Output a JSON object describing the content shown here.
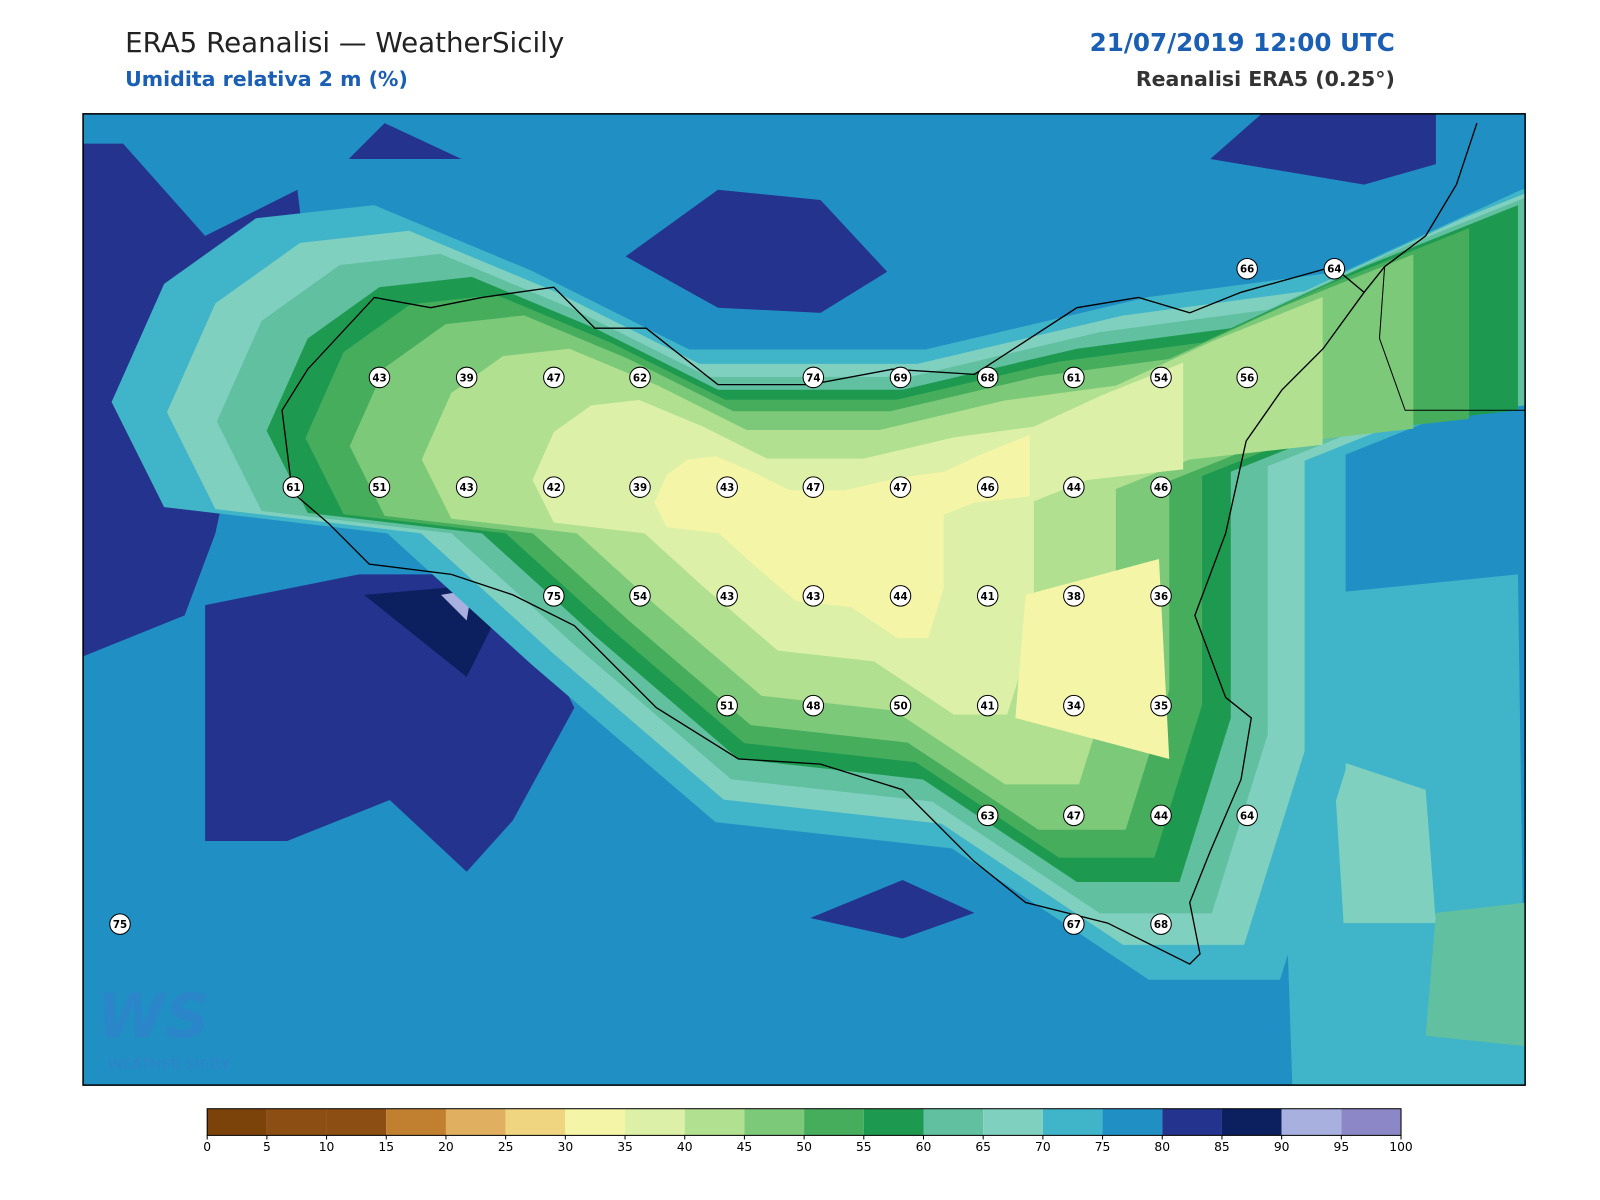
{
  "header": {
    "title": "ERA5 Reanalisi — WeatherSicily",
    "subtitle": "Umidita relativa 2 m (%)",
    "date": "21/07/2019 12:00 UTC",
    "source": "Reanalisi ERA5 (0.25°)"
  },
  "logo": {
    "text": "WS",
    "subtext": "WEATHER SICILY"
  },
  "stations": [
    66,
    64,
    43,
    39,
    47,
    62,
    74,
    69,
    68,
    61,
    54,
    56,
    61,
    51,
    43,
    42,
    39,
    43,
    47,
    47,
    46,
    44,
    46,
    75,
    54,
    43,
    43,
    44,
    41,
    38,
    36,
    51,
    48,
    50,
    41,
    34,
    35,
    63,
    47,
    44,
    64,
    75,
    67,
    68
  ],
  "colorbar": {
    "ticks": [
      0,
      5,
      10,
      15,
      20,
      25,
      30,
      35,
      40,
      45,
      50,
      55,
      60,
      65,
      70,
      75,
      80,
      85,
      90,
      95,
      100
    ],
    "colors": [
      "#7b430a",
      "#8c4e12",
      "#8c4e12",
      "#c08030",
      "#e0b060",
      "#f0d580",
      "#f5f5a8",
      "#dcf0a8",
      "#b0e090",
      "#7dc97a",
      "#45ad5c",
      "#1e9a50",
      "#60c0a0",
      "#80d0c0",
      "#40b4c8",
      "#2090c4",
      "#24338e",
      "#0c1f5e",
      "#a8b0e0",
      "#8c88c8"
    ]
  }
}
